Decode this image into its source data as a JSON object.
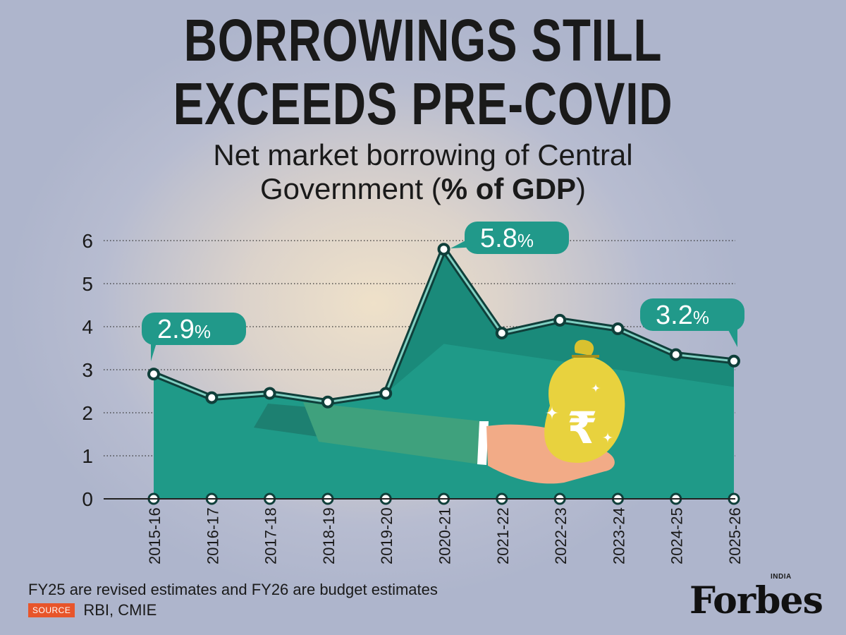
{
  "title_line1": "BORROWINGS STILL",
  "title_line2": "EXCEEDS PRE-COVID",
  "subtitle_line1": "Net market borrowing of Central",
  "subtitle_line2_plain": "Government (",
  "subtitle_line2_bold": "% of GDP",
  "subtitle_line2_close": ")",
  "chart_data": {
    "type": "area",
    "title": "BORROWINGS STILL EXCEEDS PRE-COVID",
    "subtitle": "Net market borrowing of Central Government (% of GDP)",
    "xlabel": "",
    "ylabel": "",
    "categories": [
      "2015-16",
      "2016-17",
      "2017-18",
      "2018-19",
      "2019-20",
      "2020-21",
      "2021-22",
      "2022-23",
      "2023-24",
      "2024-25",
      "2025-26"
    ],
    "values": [
      2.9,
      2.35,
      2.45,
      2.25,
      2.45,
      5.8,
      3.85,
      4.15,
      3.95,
      3.35,
      3.2
    ],
    "ylim": [
      0,
      6
    ],
    "yticks": [
      "0",
      "1",
      "2",
      "3",
      "4",
      "5",
      "6"
    ],
    "grid": true,
    "annotations": [
      {
        "index": 0,
        "number": "2.9",
        "unit": "%"
      },
      {
        "index": 5,
        "number": "5.8",
        "unit": "%"
      },
      {
        "index": 10,
        "number": "3.2",
        "unit": "%"
      }
    ],
    "colors": {
      "area": "#1f9a88",
      "area_dark": "#14786a",
      "line": "#0f3f3a",
      "marker_fill": "#ffffff",
      "callout": "#21998a",
      "money_bag": "#e8d23e",
      "sleeve": "#3fa17d",
      "hand": "#f2ab87"
    },
    "illustration_symbol": "₹"
  },
  "footnote": "FY25 are revised estimates and FY26 are budget estimates",
  "source_label": "SOURCE",
  "source_text": "RBI, CMIE",
  "logo": {
    "word": "Forbes",
    "sub": "INDIA"
  }
}
